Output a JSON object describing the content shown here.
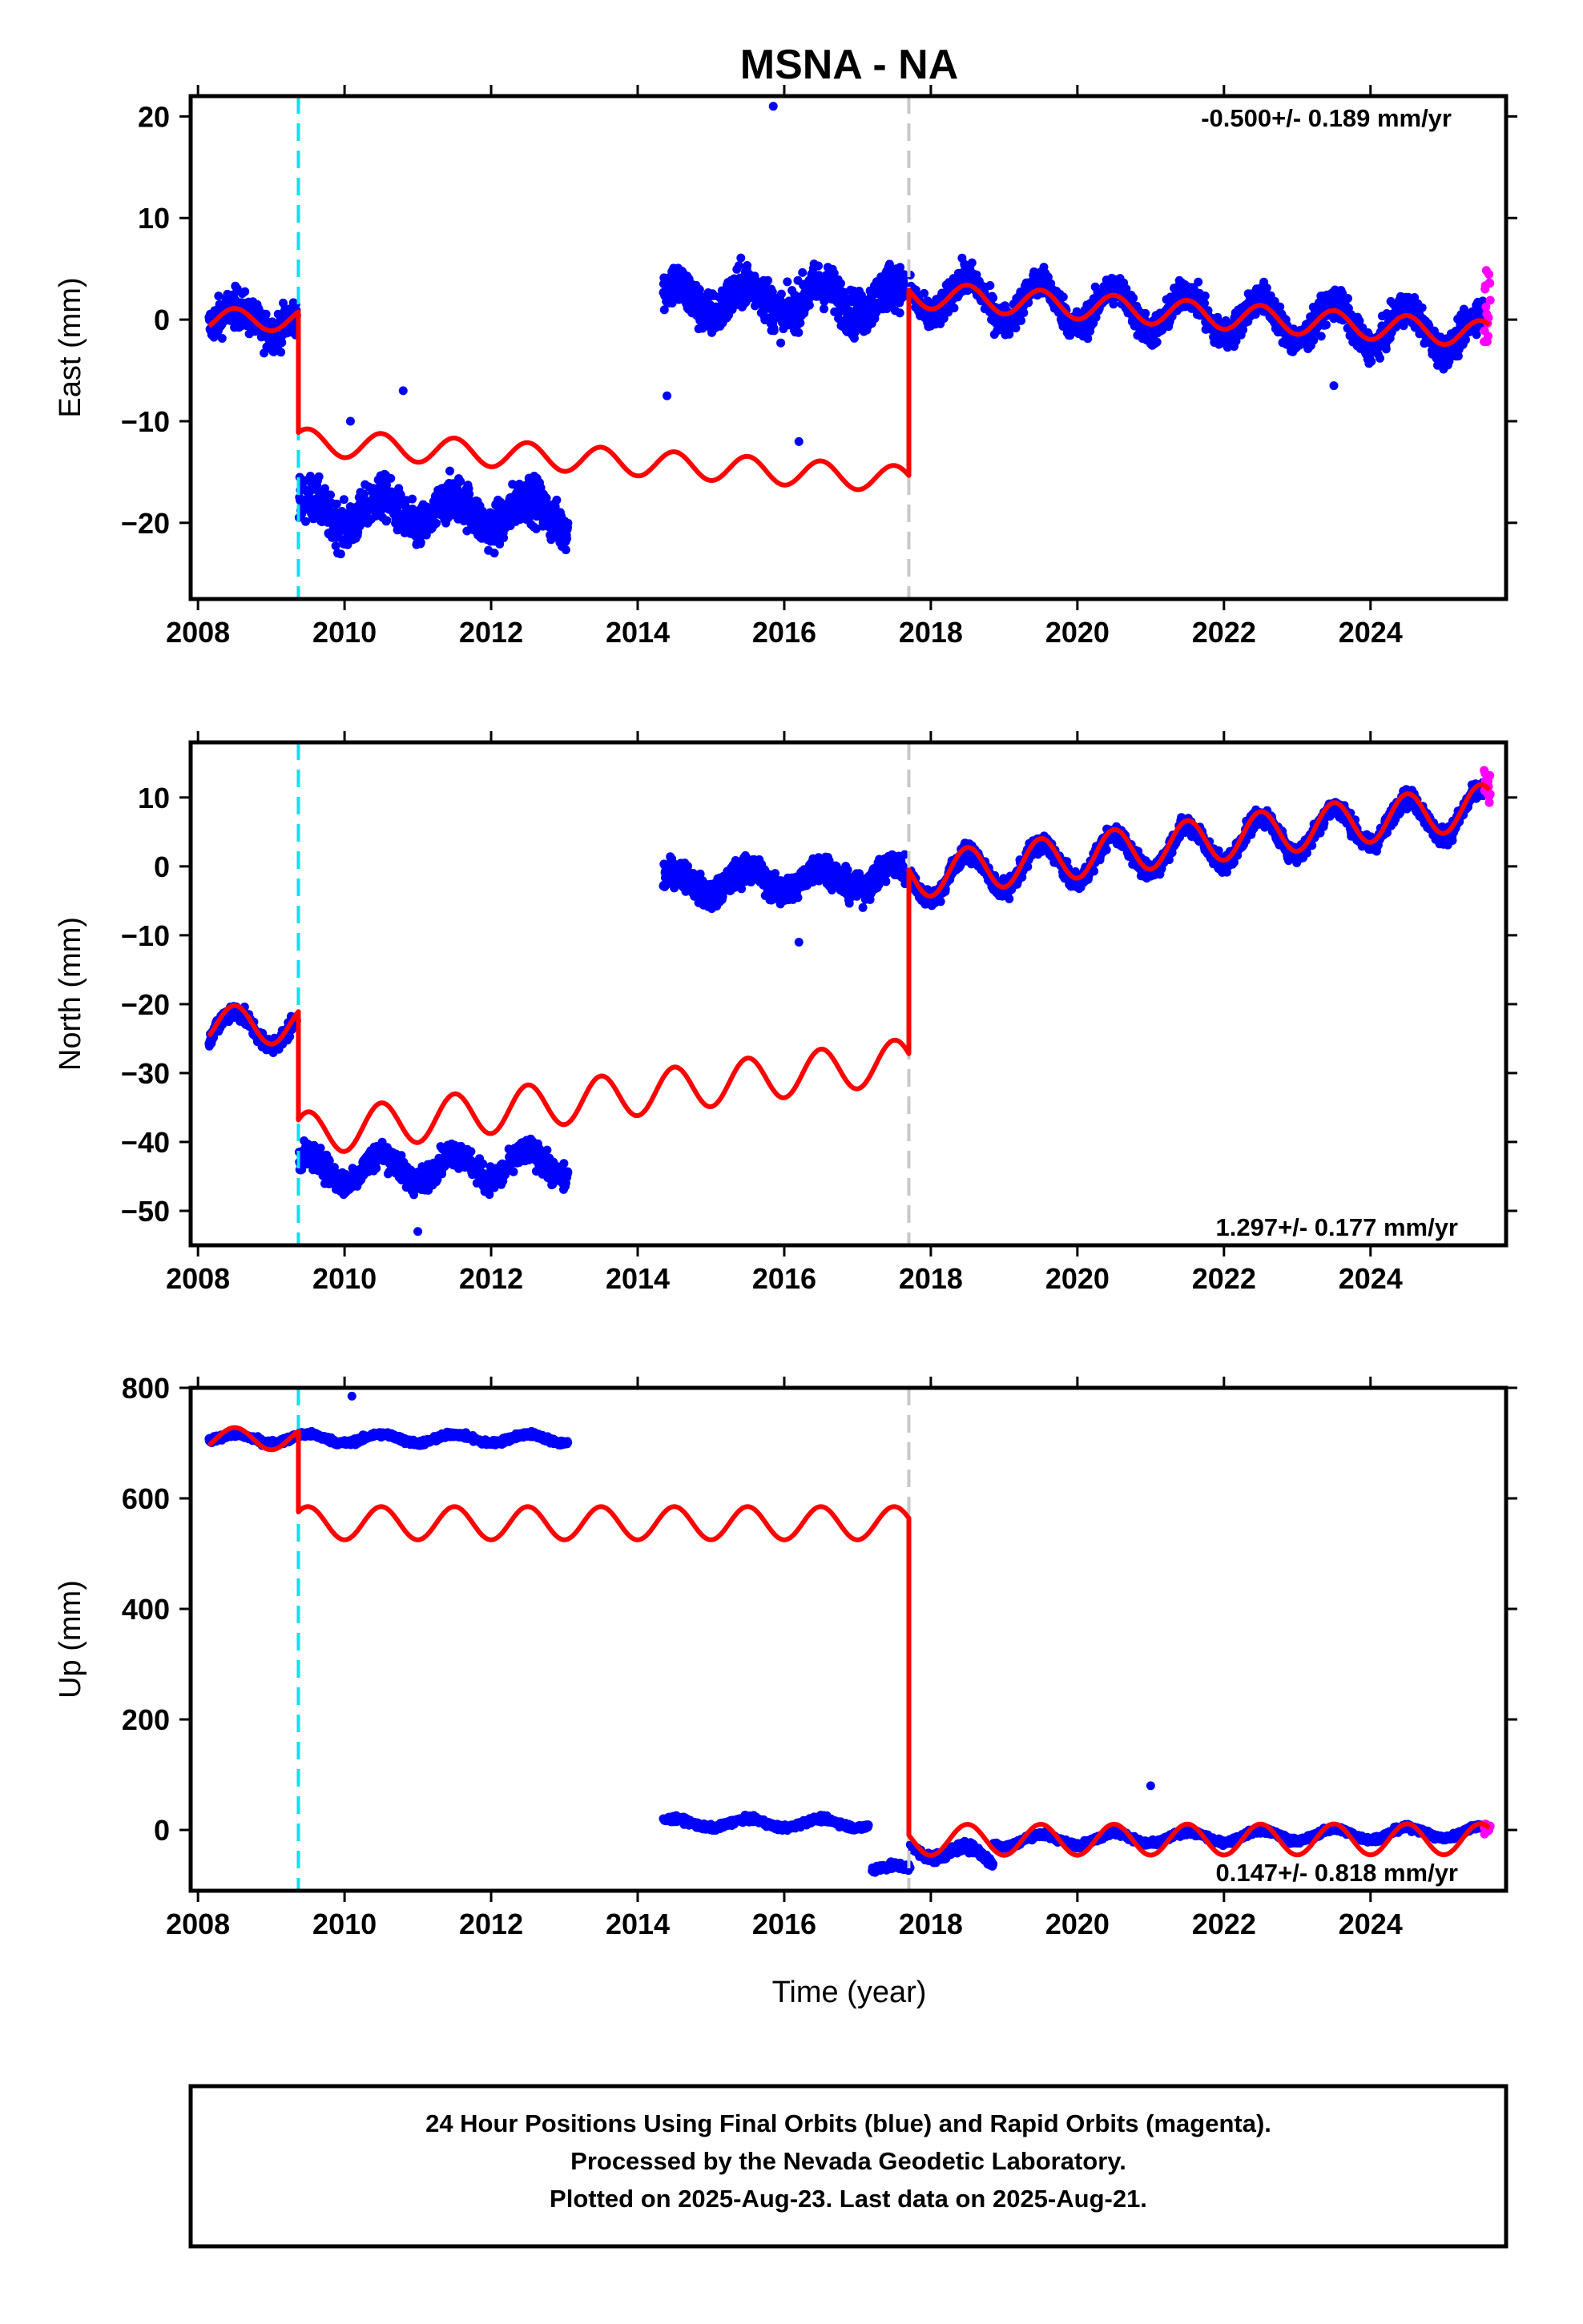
{
  "title": "MSNA - NA",
  "xlabel": "Time (year)",
  "footer": {
    "line1": "24 Hour Positions Using Final Orbits (blue) and Rapid Orbits (magenta).",
    "line2": "Processed by the Nevada Geodetic Laboratory.",
    "line3": "Plotted on 2025-Aug-23. Last data on 2025-Aug-21."
  },
  "colors": {
    "final": "#0000ff",
    "rapid": "#ff00ff",
    "model": "#ff0000",
    "event_cyan": "#00e5ee",
    "event_gray": "#c8c8c8"
  },
  "chart_data": [
    {
      "type": "scatter",
      "panel": "east",
      "ylabel": "East (mm)",
      "rate_text": "-0.500+/- 0.189 mm/yr",
      "xlim": [
        2007.9,
        2025.85
      ],
      "ylim": [
        -27.5,
        22
      ],
      "xticks": [
        2008,
        2010,
        2012,
        2014,
        2016,
        2018,
        2020,
        2022,
        2024
      ],
      "yticks": [
        20,
        10,
        0,
        -10,
        -20
      ],
      "ytick_labels": [
        "20",
        "10",
        "0",
        "−10",
        "−20"
      ],
      "event_lines": [
        {
          "x": 2009.37,
          "style": "cyan"
        },
        {
          "x": 2017.7,
          "style": "gray"
        }
      ],
      "segments": [
        {
          "series": "final",
          "x_start": 2008.15,
          "x_end": 2009.35,
          "level": 0.0,
          "slope": 0,
          "amplitude": 1.2,
          "noise": 2.2
        },
        {
          "series": "final",
          "x_start": 2009.38,
          "x_end": 2013.05,
          "level": -19.0,
          "slope": 0,
          "amplitude": 1.5,
          "noise": 2.6
        },
        {
          "series": "final",
          "x_start": 2014.35,
          "x_end": 2017.65,
          "level": 2.0,
          "slope": 0,
          "amplitude": 1.5,
          "noise": 2.6
        },
        {
          "series": "final",
          "x_start": 2017.72,
          "x_end": 2025.55,
          "level": 2.5,
          "slope": -0.5,
          "amplitude": 2.0,
          "noise": 1.8
        },
        {
          "series": "rapid",
          "x_start": 2025.55,
          "x_end": 2025.64,
          "level": 1.5,
          "slope": 0,
          "amplitude": 0,
          "noise": 5.0
        }
      ],
      "outliers": [
        [
          2015.85,
          21
        ],
        [
          2010.08,
          -10
        ],
        [
          2010.8,
          -7
        ],
        [
          2016.2,
          -12
        ],
        [
          2014.4,
          -7.5
        ],
        [
          2023.5,
          -6.5
        ]
      ],
      "model": [
        {
          "x_start": 2008.15,
          "x_end": 2009.37,
          "level": 0.0,
          "slope": 0,
          "amplitude": 1.1
        },
        {
          "x_start": 2009.37,
          "x_end": 2017.7,
          "level": -12.0,
          "slope": -0.45,
          "amplitude": 1.3
        },
        {
          "x_start": 2017.7,
          "x_end": 2025.62,
          "level": 2.5,
          "slope": -0.5,
          "amplitude": 1.3
        }
      ]
    },
    {
      "type": "scatter",
      "panel": "north",
      "ylabel": "North (mm)",
      "rate_text": "1.297+/- 0.177 mm/yr",
      "xlim": [
        2007.9,
        2025.85
      ],
      "ylim": [
        -55,
        18
      ],
      "xticks": [
        2008,
        2010,
        2012,
        2014,
        2016,
        2018,
        2020,
        2022,
        2024
      ],
      "yticks": [
        10,
        0,
        -10,
        -20,
        -30,
        -40,
        -50
      ],
      "ytick_labels": [
        "10",
        "0",
        "−10",
        "−20",
        "−30",
        "−40",
        "−50"
      ],
      "event_lines": [
        {
          "x": 2009.37,
          "style": "cyan"
        },
        {
          "x": 2017.7,
          "style": "gray"
        }
      ],
      "segments": [
        {
          "series": "final",
          "x_start": 2008.15,
          "x_end": 2009.35,
          "level": -23.5,
          "slope": 0,
          "amplitude": 2.5,
          "noise": 1.5
        },
        {
          "series": "final",
          "x_start": 2009.38,
          "x_end": 2013.05,
          "level": -44.0,
          "slope": 0.2,
          "amplitude": 2.0,
          "noise": 2.2
        },
        {
          "series": "final",
          "x_start": 2014.35,
          "x_end": 2017.65,
          "level": -2.5,
          "slope": 0.3,
          "amplitude": 1.8,
          "noise": 2.4
        },
        {
          "series": "final",
          "x_start": 2017.72,
          "x_end": 2025.55,
          "level": -2.0,
          "slope": 1.3,
          "amplitude": 3.0,
          "noise": 1.6
        },
        {
          "series": "rapid",
          "x_start": 2025.55,
          "x_end": 2025.64,
          "level": 11.5,
          "slope": 0,
          "amplitude": 0,
          "noise": 3.0
        }
      ],
      "outliers": [
        [
          2016.2,
          -11
        ],
        [
          2011.0,
          -53
        ]
      ],
      "model": [
        {
          "x_start": 2008.15,
          "x_end": 2009.37,
          "level": -23.0,
          "slope": 0,
          "amplitude": 2.8
        },
        {
          "x_start": 2009.37,
          "x_end": 2017.7,
          "level": -39.0,
          "slope": 1.3,
          "amplitude": 3.2
        },
        {
          "x_start": 2017.7,
          "x_end": 2025.62,
          "level": -1.5,
          "slope": 1.3,
          "amplitude": 3.2
        }
      ]
    },
    {
      "type": "scatter",
      "panel": "up",
      "ylabel": "Up (mm)",
      "rate_text": "0.147+/- 0.818 mm/yr",
      "xlim": [
        2007.9,
        2025.85
      ],
      "ylim": [
        -110,
        800
      ],
      "xticks": [
        2008,
        2010,
        2012,
        2014,
        2016,
        2018,
        2020,
        2022,
        2024
      ],
      "yticks": [
        800,
        600,
        400,
        200,
        0
      ],
      "ytick_labels": [
        "800",
        "600",
        "400",
        "200",
        "0"
      ],
      "event_lines": [
        {
          "x": 2009.37,
          "style": "cyan"
        },
        {
          "x": 2017.7,
          "style": "gray"
        }
      ],
      "segments": [
        {
          "series": "final",
          "x_start": 2008.15,
          "x_end": 2013.05,
          "level": 708,
          "slope": 0,
          "amplitude": 8,
          "noise": 6
        },
        {
          "series": "final",
          "x_start": 2014.35,
          "x_end": 2017.15,
          "level": 12,
          "slope": 0,
          "amplitude": 8,
          "noise": 6
        },
        {
          "series": "final",
          "x_start": 2017.2,
          "x_end": 2017.72,
          "level": -70,
          "slope": 0,
          "amplitude": 5,
          "noise": 8
        },
        {
          "series": "final",
          "x_start": 2017.72,
          "x_end": 2018.85,
          "level": -30,
          "slope": -20,
          "amplitude": 15,
          "noise": 10
        },
        {
          "series": "final",
          "x_start": 2018.85,
          "x_end": 2025.55,
          "level": -20,
          "slope": 2.5,
          "amplitude": 10,
          "noise": 6
        },
        {
          "series": "rapid",
          "x_start": 2025.55,
          "x_end": 2025.64,
          "level": 5,
          "slope": 0,
          "amplitude": 0,
          "noise": 12
        }
      ],
      "outliers": [
        [
          2010.1,
          785
        ],
        [
          2021.0,
          80
        ]
      ],
      "model": [
        {
          "x_start": 2008.15,
          "x_end": 2009.37,
          "level": 708,
          "slope": 0,
          "amplitude": 20
        },
        {
          "x_start": 2009.37,
          "x_end": 2017.7,
          "level": 555,
          "slope": 0,
          "amplitude": 30
        },
        {
          "x_start": 2017.7,
          "x_end": 2025.62,
          "level": -18,
          "slope": 0.15,
          "amplitude": 28
        }
      ]
    }
  ]
}
